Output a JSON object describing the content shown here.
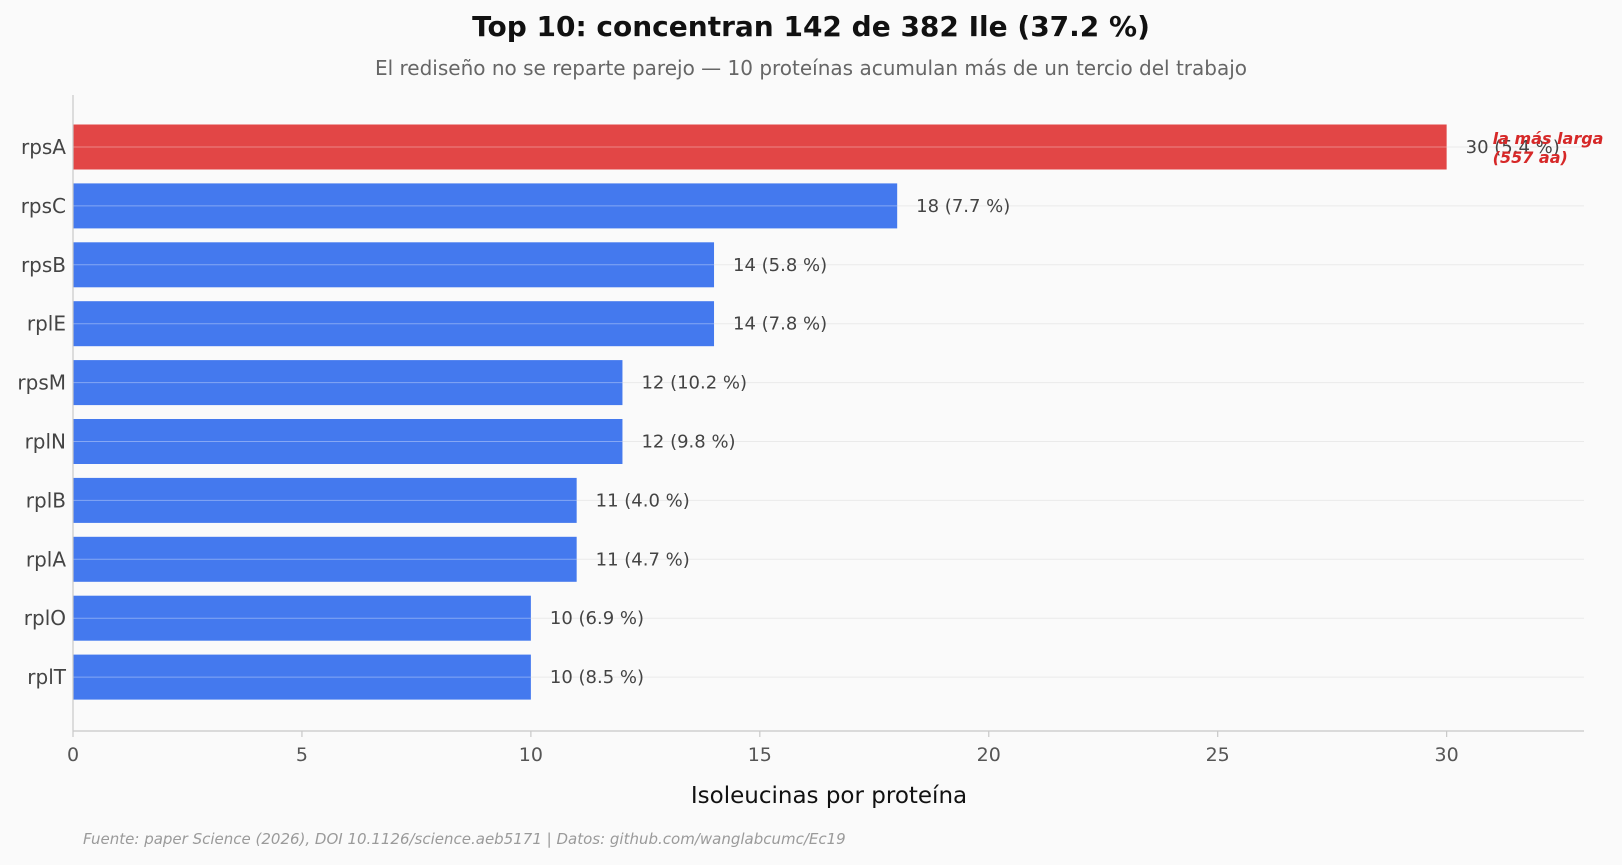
{
  "chart_data": {
    "type": "bar",
    "orientation": "horizontal",
    "title": "Top 10: concentran 142 de 382 Ile (37.2 %)",
    "subtitle": "El rediseño no se reparte parejo — 10 proteínas acumulan más de un tercio del trabajo",
    "xlabel": "Isoleucinas por proteína",
    "ylabel": "",
    "xlim": [
      0,
      33
    ],
    "xticks": [
      "0",
      "5",
      "10",
      "15",
      "20",
      "25",
      "30"
    ],
    "grid": "horizontal lines at each bar",
    "categories": [
      "rpsA",
      "rpsC",
      "rpsB",
      "rplE",
      "rpsM",
      "rplN",
      "rplB",
      "rplA",
      "rplO",
      "rplT"
    ],
    "values": [
      30,
      18,
      14,
      14,
      12,
      12,
      11,
      11,
      10,
      10
    ],
    "value_labels": [
      "30 (5.4 %)",
      "18 (7.7 %)",
      "14 (5.8 %)",
      "14 (7.8 %)",
      "12 (10.2 %)",
      "12 (9.8 %)",
      "11 (4.0 %)",
      "11 (4.7 %)",
      "10 (6.9 %)",
      "10 (8.5 %)"
    ],
    "highlight_index": 0,
    "annotation": {
      "lines": [
        "la más larga",
        "(557 aa)"
      ],
      "target": "rpsA"
    },
    "source": "Fuente: paper Science (2026), DOI 10.1126/science.aeb5171 | Datos: github.com/wanglabcumc/Ec19"
  },
  "colors": {
    "bar": "#4479ee",
    "highlight_bar": "#e24646",
    "annotation": "#d62828",
    "grid": "#eaeaea",
    "axis": "#c8c8c8"
  }
}
